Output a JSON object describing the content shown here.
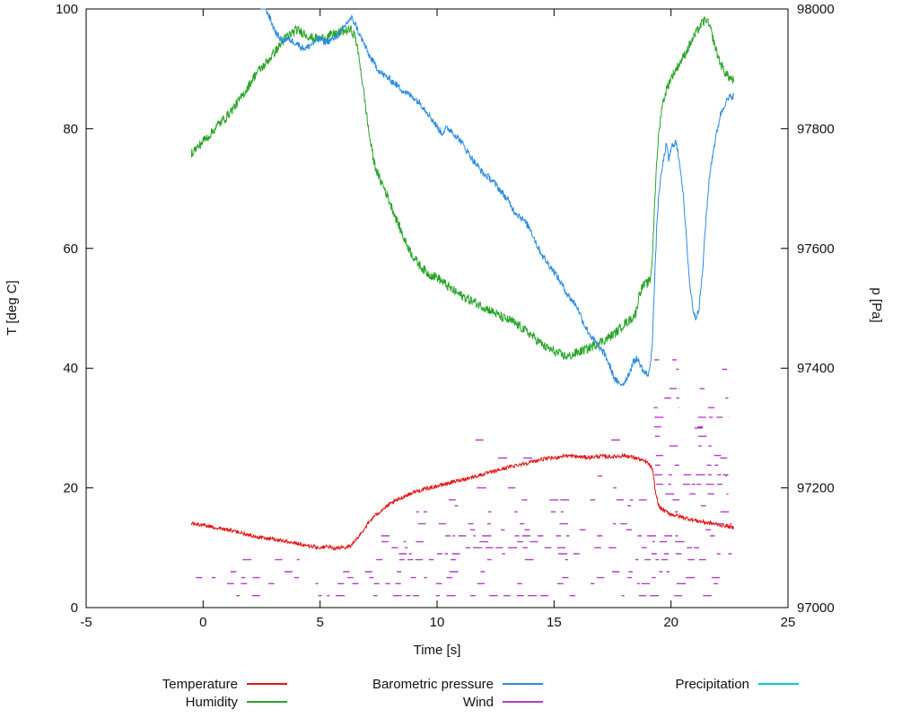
{
  "chart_data": {
    "type": "line",
    "title": "",
    "xlabel": "Time [s]",
    "ylabel": "T [deg C]",
    "y2label": "p [Pa]",
    "xlim": [
      -5,
      25
    ],
    "ylim": [
      0,
      100
    ],
    "y2lim": [
      97000,
      98000
    ],
    "xticks": [
      -5,
      0,
      5,
      10,
      15,
      20,
      25
    ],
    "yticks": [
      0,
      20,
      40,
      60,
      80,
      100
    ],
    "y2ticks": [
      97000,
      97200,
      97400,
      97600,
      97800,
      98000
    ],
    "grid": false,
    "legend_position": "below-plot, two rows, three columns",
    "series": [
      {
        "name": "Temperature",
        "color": "#e01515",
        "axis": "y1",
        "noise": 0.32,
        "points": [
          [
            -0.5,
            14.0
          ],
          [
            0,
            13.8
          ],
          [
            0.5,
            13.4
          ],
          [
            1,
            13.0
          ],
          [
            1.5,
            12.6
          ],
          [
            2,
            12.1
          ],
          [
            2.5,
            11.7
          ],
          [
            3,
            11.4
          ],
          [
            3.5,
            11.1
          ],
          [
            4,
            10.8
          ],
          [
            4.5,
            10.3
          ],
          [
            5,
            10.0
          ],
          [
            5.3,
            10.2
          ],
          [
            5.6,
            9.9
          ],
          [
            6,
            10.0
          ],
          [
            6.3,
            10.3
          ],
          [
            6.6,
            11.6
          ],
          [
            7,
            13.8
          ],
          [
            7.3,
            15.2
          ],
          [
            7.6,
            16.2
          ],
          [
            8,
            17.3
          ],
          [
            8.5,
            18.4
          ],
          [
            9,
            19.3
          ],
          [
            9.5,
            19.8
          ],
          [
            10,
            20.3
          ],
          [
            10.5,
            20.8
          ],
          [
            11,
            21.3
          ],
          [
            11.5,
            21.8
          ],
          [
            12,
            22.3
          ],
          [
            12.5,
            22.8
          ],
          [
            13,
            23.4
          ],
          [
            13.5,
            23.9
          ],
          [
            14,
            24.3
          ],
          [
            14.5,
            24.8
          ],
          [
            15,
            25.0
          ],
          [
            15.5,
            25.4
          ],
          [
            16,
            25.2
          ],
          [
            16.5,
            25.1
          ],
          [
            17,
            25.3
          ],
          [
            17.5,
            25.2
          ],
          [
            18,
            25.4
          ],
          [
            18.5,
            25.0
          ],
          [
            19,
            24.2
          ],
          [
            19.2,
            23.2
          ],
          [
            19.35,
            19.0
          ],
          [
            19.5,
            16.8
          ],
          [
            19.7,
            16.2
          ],
          [
            20,
            15.6
          ],
          [
            20.5,
            15.1
          ],
          [
            21,
            14.6
          ],
          [
            21.5,
            14.2
          ],
          [
            22,
            13.9
          ],
          [
            22.4,
            13.6
          ],
          [
            22.7,
            13.3
          ]
        ]
      },
      {
        "name": "Humidity",
        "color": "#28a428",
        "axis": "y1",
        "noise": 0.8,
        "points": [
          [
            -0.5,
            76
          ],
          [
            -0.2,
            77
          ],
          [
            0,
            78
          ],
          [
            0.3,
            79
          ],
          [
            0.6,
            80.5
          ],
          [
            1,
            82
          ],
          [
            1.3,
            83.5
          ],
          [
            1.6,
            85
          ],
          [
            2,
            87.5
          ],
          [
            2.3,
            89.5
          ],
          [
            2.6,
            90.5
          ],
          [
            3,
            92.5
          ],
          [
            3.3,
            94
          ],
          [
            3.6,
            95.5
          ],
          [
            4,
            96.5
          ],
          [
            4.3,
            96
          ],
          [
            4.6,
            95.2
          ],
          [
            5,
            95
          ],
          [
            5.3,
            95.4
          ],
          [
            5.6,
            95.8
          ],
          [
            6,
            96.3
          ],
          [
            6.3,
            96.5
          ],
          [
            6.5,
            95.5
          ],
          [
            6.7,
            91
          ],
          [
            6.9,
            85
          ],
          [
            7.1,
            79
          ],
          [
            7.3,
            74.5
          ],
          [
            7.5,
            72
          ],
          [
            7.7,
            70.5
          ],
          [
            8,
            67.5
          ],
          [
            8.3,
            64.5
          ],
          [
            8.6,
            61.5
          ],
          [
            9,
            58.5
          ],
          [
            9.3,
            57
          ],
          [
            9.6,
            55.8
          ],
          [
            10,
            55.2
          ],
          [
            10.3,
            54.2
          ],
          [
            10.6,
            53.2
          ],
          [
            11,
            52.2
          ],
          [
            11.5,
            51.2
          ],
          [
            12,
            50.2
          ],
          [
            12.4,
            49.4
          ],
          [
            12.8,
            48.4
          ],
          [
            13.2,
            47.8
          ],
          [
            13.6,
            46.8
          ],
          [
            14,
            45.6
          ],
          [
            14.3,
            44.6
          ],
          [
            14.6,
            43.6
          ],
          [
            15,
            42.8
          ],
          [
            15.3,
            42.2
          ],
          [
            15.6,
            41.9
          ],
          [
            16,
            42.6
          ],
          [
            16.4,
            43.2
          ],
          [
            16.8,
            44.0
          ],
          [
            17.2,
            44.8
          ],
          [
            17.6,
            45.8
          ],
          [
            18,
            47.4
          ],
          [
            18.3,
            48.2
          ],
          [
            18.5,
            49.2
          ],
          [
            18.65,
            52.5
          ],
          [
            18.8,
            53.8
          ],
          [
            19,
            54.2
          ],
          [
            19.1,
            54.6
          ],
          [
            19.2,
            58
          ],
          [
            19.3,
            68
          ],
          [
            19.45,
            78
          ],
          [
            19.6,
            83.5
          ],
          [
            19.8,
            86.5
          ],
          [
            20,
            88.5
          ],
          [
            20.3,
            90.5
          ],
          [
            20.6,
            92.5
          ],
          [
            21,
            95.5
          ],
          [
            21.3,
            97.5
          ],
          [
            21.5,
            98.3
          ],
          [
            21.7,
            96.5
          ],
          [
            21.9,
            93.5
          ],
          [
            22.1,
            91
          ],
          [
            22.3,
            89.5
          ],
          [
            22.5,
            88.5
          ],
          [
            22.7,
            88
          ]
        ]
      },
      {
        "name": "Barometric pressure",
        "color": "#2a8be0",
        "axis": "y2",
        "noise": 6,
        "points": [
          [
            2.45,
            98015
          ],
          [
            2.6,
            98005
          ],
          [
            2.75,
            97995
          ],
          [
            2.9,
            97980
          ],
          [
            3.05,
            97965
          ],
          [
            3.2,
            97955
          ],
          [
            3.4,
            97947
          ],
          [
            3.6,
            97950
          ],
          [
            3.8,
            97947
          ],
          [
            4,
            97943
          ],
          [
            4.2,
            97936
          ],
          [
            4.4,
            97934
          ],
          [
            4.6,
            97940
          ],
          [
            4.8,
            97946
          ],
          [
            5,
            97950
          ],
          [
            5.2,
            97945
          ],
          [
            5.4,
            97947
          ],
          [
            5.6,
            97951
          ],
          [
            5.8,
            97958
          ],
          [
            6,
            97968
          ],
          [
            6.2,
            97980
          ],
          [
            6.35,
            97984
          ],
          [
            6.5,
            97975
          ],
          [
            6.7,
            97956
          ],
          [
            6.9,
            97940
          ],
          [
            7.1,
            97922
          ],
          [
            7.3,
            97910
          ],
          [
            7.5,
            97898
          ],
          [
            7.7,
            97890
          ],
          [
            8,
            97882
          ],
          [
            8.3,
            97872
          ],
          [
            8.6,
            97862
          ],
          [
            9,
            97852
          ],
          [
            9.3,
            97842
          ],
          [
            9.6,
            97827
          ],
          [
            10,
            97803
          ],
          [
            10.2,
            97793
          ],
          [
            10.4,
            97800
          ],
          [
            10.6,
            97798
          ],
          [
            10.8,
            97788
          ],
          [
            11,
            97780
          ],
          [
            11.3,
            97762
          ],
          [
            11.6,
            97744
          ],
          [
            12,
            97724
          ],
          [
            12.3,
            97716
          ],
          [
            12.6,
            97702
          ],
          [
            13,
            97682
          ],
          [
            13.3,
            97662
          ],
          [
            13.6,
            97652
          ],
          [
            14,
            97632
          ],
          [
            14.3,
            97603
          ],
          [
            14.6,
            97582
          ],
          [
            15,
            97562
          ],
          [
            15.3,
            97542
          ],
          [
            15.6,
            97522
          ],
          [
            16,
            97502
          ],
          [
            16.3,
            97472
          ],
          [
            16.6,
            97452
          ],
          [
            17,
            97432
          ],
          [
            17.2,
            97421
          ],
          [
            17.4,
            97401
          ],
          [
            17.6,
            97382
          ],
          [
            17.8,
            97372
          ],
          [
            18,
            97376
          ],
          [
            18.2,
            97391
          ],
          [
            18.4,
            97411
          ],
          [
            18.55,
            97416
          ],
          [
            18.7,
            97405
          ],
          [
            18.85,
            97393
          ],
          [
            19,
            97389
          ],
          [
            19.1,
            97398
          ],
          [
            19.2,
            97445
          ],
          [
            19.3,
            97545
          ],
          [
            19.4,
            97645
          ],
          [
            19.5,
            97700
          ],
          [
            19.65,
            97740
          ],
          [
            19.8,
            97775
          ],
          [
            19.9,
            97748
          ],
          [
            20.05,
            97772
          ],
          [
            20.2,
            97778
          ],
          [
            20.35,
            97750
          ],
          [
            20.5,
            97700
          ],
          [
            20.65,
            97620
          ],
          [
            20.8,
            97540
          ],
          [
            20.95,
            97497
          ],
          [
            21.05,
            97483
          ],
          [
            21.2,
            97502
          ],
          [
            21.35,
            97562
          ],
          [
            21.5,
            97652
          ],
          [
            21.65,
            97722
          ],
          [
            21.8,
            97762
          ],
          [
            21.95,
            97792
          ],
          [
            22.1,
            97822
          ],
          [
            22.3,
            97842
          ],
          [
            22.5,
            97852
          ],
          [
            22.7,
            97856
          ]
        ]
      },
      {
        "name": "Wind",
        "color": "#b13fc4",
        "axis": "y1",
        "style": "dashes",
        "rows": [
          [
            2,
            -0.4,
            22.6,
            0.5
          ],
          [
            4,
            -0.4,
            22.6,
            0.45
          ],
          [
            5,
            -0.4,
            22.6,
            0.3
          ],
          [
            6,
            -0.2,
            22.6,
            0.3
          ],
          [
            8,
            1.5,
            7.2,
            0.15
          ],
          [
            8,
            7.2,
            22.6,
            0.4
          ],
          [
            9,
            -0.4,
            2.0,
            0.15
          ],
          [
            9,
            7.2,
            22.6,
            0.45
          ],
          [
            10,
            0.0,
            7.5,
            0.18
          ],
          [
            10,
            7.5,
            22.5,
            0.4
          ],
          [
            11,
            7.5,
            22.4,
            0.25
          ],
          [
            12,
            7.5,
            22.6,
            0.45
          ],
          [
            13,
            9.0,
            22.0,
            0.15
          ],
          [
            14,
            8.0,
            22.6,
            0.35
          ],
          [
            16,
            9.0,
            22.6,
            0.3
          ],
          [
            17,
            10.0,
            21.5,
            0.12
          ],
          [
            18,
            10.5,
            22.4,
            0.25
          ],
          [
            20,
            11.0,
            22.4,
            0.12
          ],
          [
            22,
            12.0,
            22.4,
            0.1
          ],
          [
            25,
            12.5,
            22.4,
            0.08
          ],
          [
            28,
            9.8,
            22.4,
            0.06
          ],
          [
            30,
            11.8,
            22.4,
            0.05
          ]
        ],
        "bursts": [
          [
            19.25,
            20.35,
            46
          ],
          [
            20.35,
            21.05,
            27
          ],
          [
            21.05,
            22.45,
            41
          ]
        ]
      },
      {
        "name": "Precipitation",
        "color": "#00c8d0",
        "axis": "y1",
        "points": []
      }
    ]
  }
}
